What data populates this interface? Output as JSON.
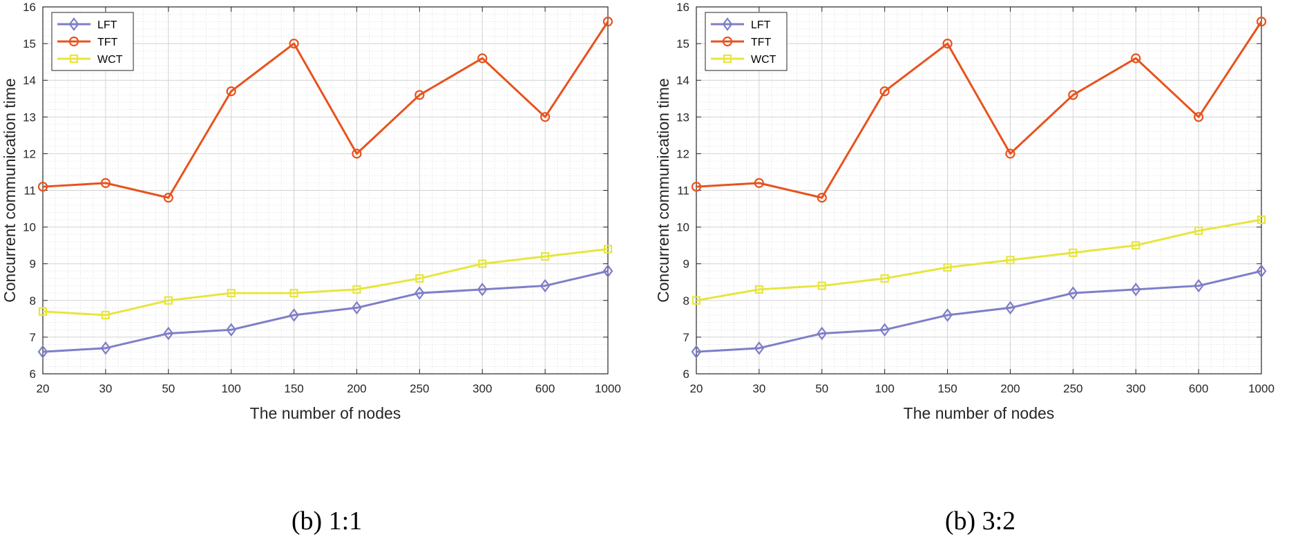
{
  "chart_data": [
    {
      "type": "line",
      "caption": "(b) 1:1",
      "xlabel": "The number of nodes",
      "ylabel": "Concurrent communication time",
      "categories": [
        "20",
        "30",
        "50",
        "100",
        "150",
        "200",
        "250",
        "300",
        "600",
        "1000"
      ],
      "ylim": [
        6,
        16
      ],
      "yticks": [
        "6",
        "7",
        "8",
        "9",
        "10",
        "11",
        "12",
        "13",
        "14",
        "15",
        "16"
      ],
      "grid": true,
      "minor_grid": true,
      "legend": "top-left",
      "series": [
        {
          "name": "LFT",
          "color": "#7e7ec8",
          "marker": "diamond",
          "values": [
            6.6,
            6.7,
            7.1,
            7.2,
            7.6,
            7.8,
            8.2,
            8.3,
            8.4,
            8.8
          ]
        },
        {
          "name": "TFT",
          "color": "#e8521c",
          "marker": "circle",
          "values": [
            11.1,
            11.2,
            10.8,
            13.7,
            15.0,
            12.0,
            13.6,
            14.6,
            13.0,
            15.6
          ]
        },
        {
          "name": "WCT",
          "color": "#e6e63c",
          "marker": "square",
          "values": [
            7.7,
            7.6,
            8.0,
            8.2,
            8.2,
            8.3,
            8.6,
            9.0,
            9.2,
            9.4
          ]
        }
      ]
    },
    {
      "type": "line",
      "caption": "(b) 3:2",
      "xlabel": "The number of nodes",
      "ylabel": "Concurrent communication time",
      "categories": [
        "20",
        "30",
        "50",
        "100",
        "150",
        "200",
        "250",
        "300",
        "600",
        "1000"
      ],
      "ylim": [
        6,
        16
      ],
      "yticks": [
        "6",
        "7",
        "8",
        "9",
        "10",
        "11",
        "12",
        "13",
        "14",
        "15",
        "16"
      ],
      "grid": true,
      "minor_grid": true,
      "legend": "top-left",
      "series": [
        {
          "name": "LFT",
          "color": "#7e7ec8",
          "marker": "diamond",
          "values": [
            6.6,
            6.7,
            7.1,
            7.2,
            7.6,
            7.8,
            8.2,
            8.3,
            8.4,
            8.8
          ]
        },
        {
          "name": "TFT",
          "color": "#e8521c",
          "marker": "circle",
          "values": [
            11.1,
            11.2,
            10.8,
            13.7,
            15.0,
            12.0,
            13.6,
            14.6,
            13.0,
            15.6
          ]
        },
        {
          "name": "WCT",
          "color": "#e6e63c",
          "marker": "square",
          "values": [
            8.0,
            8.3,
            8.4,
            8.6,
            8.9,
            9.1,
            9.3,
            9.5,
            9.9,
            10.2
          ]
        }
      ]
    }
  ]
}
